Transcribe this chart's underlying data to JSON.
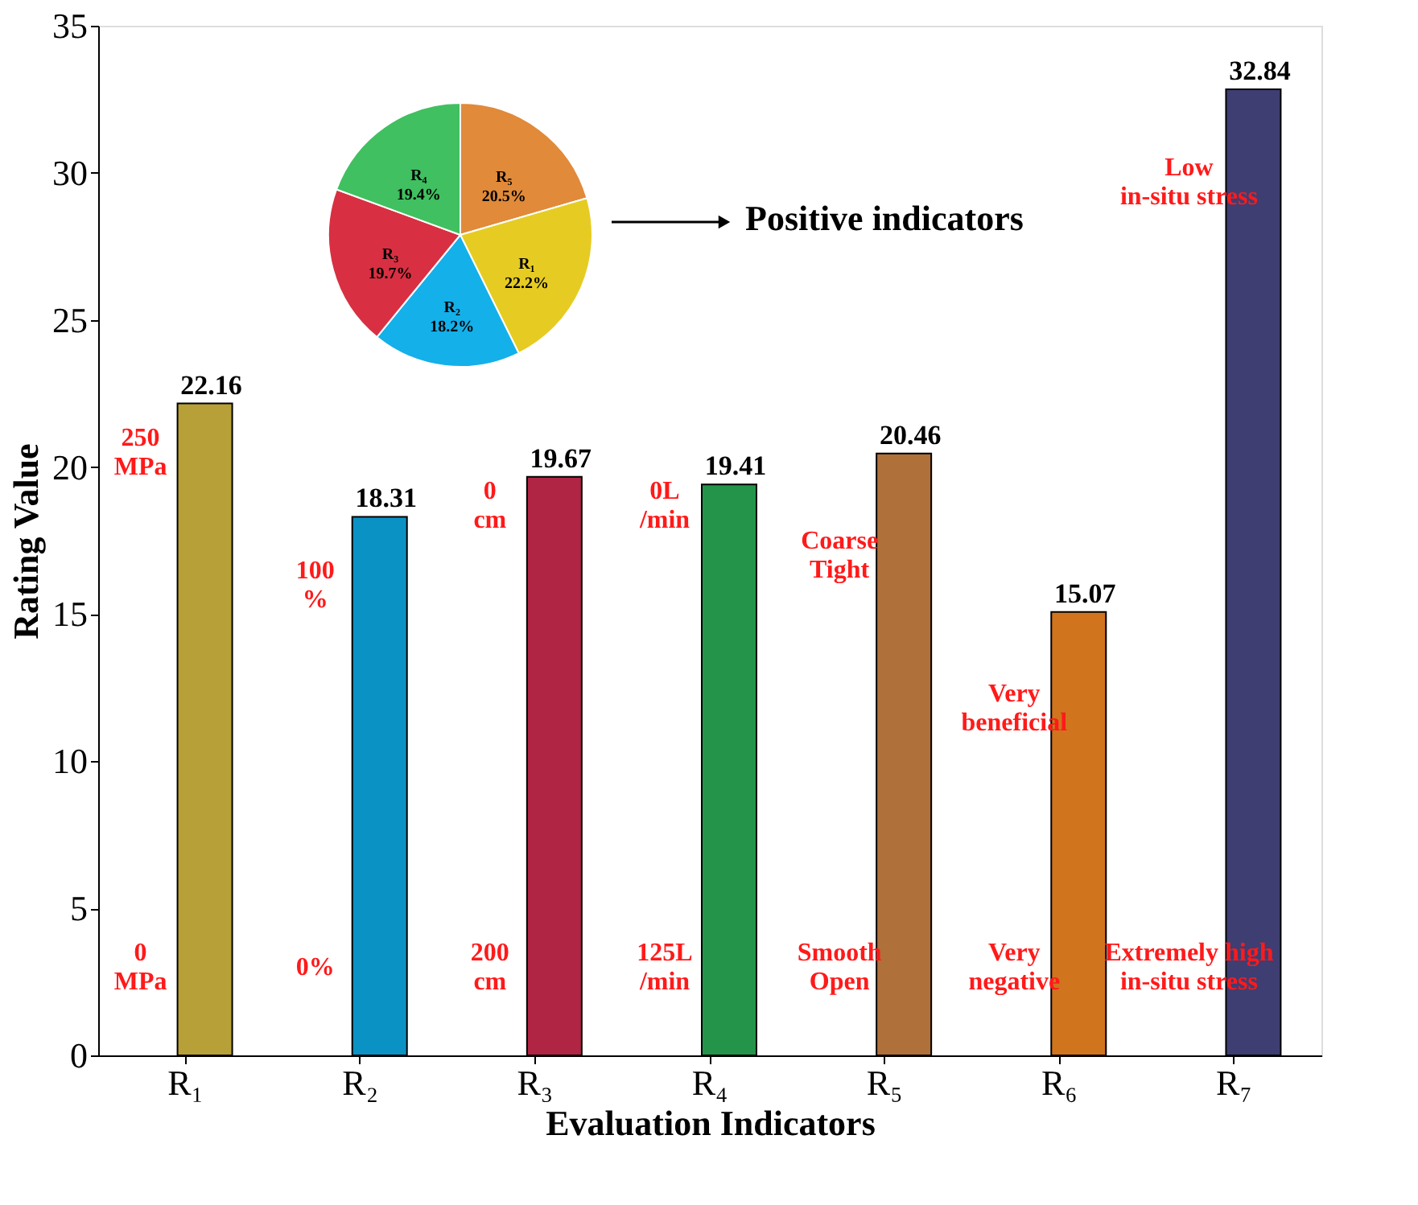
{
  "chart_data": [
    {
      "type": "bar",
      "xlabel": "Evaluation Indicators",
      "ylabel": "Rating Value",
      "categories": [
        "R₁",
        "R₂",
        "R₃",
        "R₄",
        "R₅",
        "R₆",
        "R₇"
      ],
      "values": [
        22.16,
        18.31,
        19.67,
        19.41,
        20.46,
        15.07,
        32.84
      ],
      "colors": [
        "#b8a038",
        "#0a92c4",
        "#b02444",
        "#24944a",
        "#b0703a",
        "#d0741e",
        "#3e3e72"
      ],
      "data_labels": true,
      "ylim": [
        0,
        35
      ],
      "yticks": [
        0,
        5,
        10,
        15,
        20,
        25,
        30,
        35
      ],
      "grid": false,
      "annotations": [
        {
          "text": "250\nMPa",
          "x": "R₁",
          "y": 21
        },
        {
          "text": "0\nMPa",
          "x": "R₁",
          "y": 3.5
        },
        {
          "text": "100\n%",
          "x": "R₂",
          "y": 16.5
        },
        {
          "text": "0%",
          "x": "R₂",
          "y": 3
        },
        {
          "text": "0\ncm",
          "x": "R₃",
          "y": 19.2
        },
        {
          "text": "200\ncm",
          "x": "R₃",
          "y": 3.5
        },
        {
          "text": "0L\n/min",
          "x": "R₄",
          "y": 19.2
        },
        {
          "text": "125L\n/min",
          "x": "R₄",
          "y": 3.5
        },
        {
          "text": "Coarse\nTight",
          "x": "R₅",
          "y": 17.5
        },
        {
          "text": "Smooth\nOpen",
          "x": "R₅",
          "y": 3.5
        },
        {
          "text": "Very\nbeneficial",
          "x": "R₆",
          "y": 12.3
        },
        {
          "text": "Very\nnegative",
          "x": "R₆",
          "y": 3.5
        },
        {
          "text": "Low\nin-situ stress",
          "x": "R₇",
          "y": 30.2
        },
        {
          "text": "Extremely high\nin-situ stress",
          "x": "R₇",
          "y": 3.5
        }
      ]
    },
    {
      "type": "pie",
      "categories": [
        "R₅",
        "R₁",
        "R₂",
        "R₃",
        "R₄"
      ],
      "values": [
        20.5,
        22.2,
        18.2,
        19.7,
        19.4
      ],
      "colors": [
        "#e08a3a",
        "#e6cc22",
        "#14b0ea",
        "#d83042",
        "#40c060"
      ],
      "value_labels": [
        "20.5%",
        "22.2%",
        "18.2%",
        "19.7%",
        "19.4%"
      ],
      "annotations": [
        "Positive indicators"
      ]
    }
  ]
}
